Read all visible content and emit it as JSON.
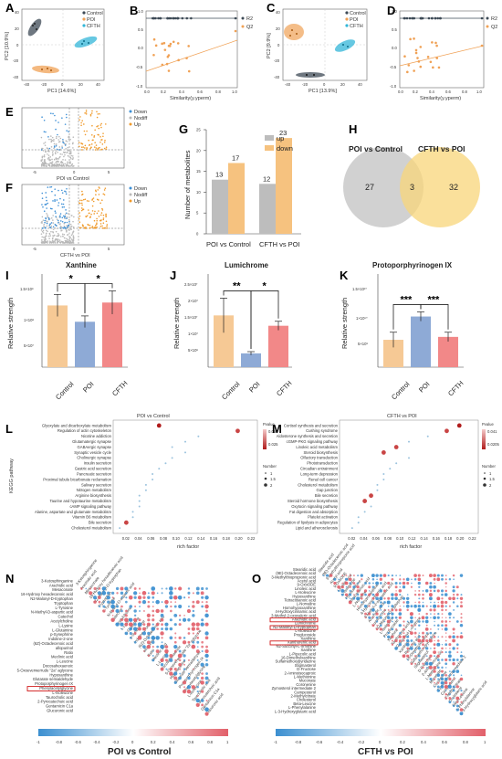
{
  "panel_letters": [
    "A",
    "B",
    "C",
    "D",
    "E",
    "F",
    "G",
    "H",
    "I",
    "J",
    "K",
    "L",
    "M",
    "N",
    "O"
  ],
  "legends": {
    "groups": [
      "Control",
      "POI",
      "CFTH"
    ],
    "r2q2": [
      "R2",
      "Q2"
    ],
    "volcano": [
      "Down",
      "Nodiff",
      "Up"
    ],
    "updown": [
      "up",
      "down"
    ]
  },
  "panel_a": {
    "xlabel": "PC1 [14.6%]",
    "ylabel": "PC2 [10.9%]",
    "xticks": [
      "-40",
      "-20",
      "0",
      "20",
      "40"
    ],
    "yticks": [
      "-40",
      "-20",
      "0",
      "20",
      "40"
    ]
  },
  "panel_b": {
    "xlabel": "Similarity(y.yperm)",
    "xticks": [
      "0.0",
      "0.2",
      "0.4",
      "0.6",
      "0.8",
      "1.0"
    ],
    "yticks": [
      "-1.0",
      "-0.5",
      "0.0",
      "0.5",
      "1.0"
    ]
  },
  "panel_c": {
    "xlabel": "PC1 [13.9%]",
    "ylabel": "PC2 [9.9%]",
    "xticks": [
      "-40",
      "-20",
      "0",
      "20",
      "40"
    ],
    "yticks": [
      "-40",
      "-20",
      "0",
      "20",
      "40"
    ]
  },
  "panel_d": {
    "xlabel": "Similarity(y.yperm)",
    "xticks": [
      "0.0",
      "0.2",
      "0.4",
      "0.6",
      "0.8",
      "1.0"
    ],
    "yticks": [
      "-1.0",
      "-0.5",
      "0.0",
      "0.5",
      "1.0"
    ]
  },
  "panel_e": {
    "xlabel": "POI vs Control",
    "xticks": [
      "-5",
      "0",
      "5"
    ]
  },
  "panel_f": {
    "xlabel": "CFTH vs POI",
    "xticks": [
      "-5",
      "0",
      "5"
    ]
  },
  "panel_g": {
    "ylabel": "Number of metabolites",
    "yticks": [
      "0",
      "5",
      "10",
      "15",
      "20",
      "25"
    ],
    "categories": [
      "POI vs Control",
      "CFTH vs POI"
    ],
    "up": [
      13,
      12
    ],
    "down": [
      17,
      23
    ],
    "labels_up": [
      "13",
      "12"
    ],
    "labels_down": [
      "17",
      "23"
    ]
  },
  "panel_h": {
    "left": "POI vs Control",
    "right": "CFTH vs POI",
    "left_only": "27",
    "overlap": "3",
    "right_only": "32"
  },
  "panel_i": {
    "title": "Xanthine",
    "ylabel": "Relative strength",
    "yticks": [
      "5×10⁷",
      "1×10⁸",
      "1.5×10⁸"
    ],
    "categories": [
      "Control",
      "POI",
      "CFTH"
    ],
    "values": [
      106000000,
      78000000,
      111000000
    ],
    "errors": [
      19000000,
      10000000,
      20000000
    ],
    "sig": [
      "*",
      "*"
    ]
  },
  "panel_j": {
    "title": "Lumichrome",
    "ylabel": "Relative strength",
    "yticks": [
      "5×10⁶",
      "1×10⁷",
      "1.5×10⁷",
      "2×10⁷",
      "2.5×10⁷"
    ],
    "categories": [
      "Control",
      "POI",
      "CFTH"
    ],
    "values": [
      15000000,
      4000000,
      12000000
    ],
    "errors": [
      5000000,
      500000,
      1300000
    ],
    "sig": [
      "**",
      "*"
    ]
  },
  "panel_k": {
    "title": "Protoporphyrinogen IX",
    "ylabel": "Relative strength",
    "yticks": [
      "5×10⁹",
      "1×10¹⁰",
      "1.5×10¹⁰"
    ],
    "categories": [
      "Control",
      "POI",
      "CFTH"
    ],
    "values": [
      4700000000,
      8700000000,
      5200000000
    ],
    "errors": [
      1300000000,
      800000000,
      800000000
    ],
    "sig": [
      "***",
      "***"
    ]
  },
  "panel_l": {
    "title": "POI vs Control",
    "ylabel": "KEGG pathway",
    "xlabel": "rich factor",
    "xticks": [
      "0.02",
      "0.04",
      "0.06",
      "0.08",
      "0.10",
      "0.12",
      "0.14",
      "0.16",
      "0.18",
      "0.20",
      "0.22"
    ],
    "pathways": [
      "Glyoxylate and dicarboxylate metabolism",
      "Regulation of actin cytoskeleton",
      "Nicotine addiction",
      "Glutamatergic synapse",
      "GABAergic synapse",
      "Synaptic vesicle cycle",
      "Cholinergic synapse",
      "Insulin secretion",
      "Gastric acid secretion",
      "Pancreatic secretion",
      "Proximal tubule bicarbonate reclamation",
      "Salivary secretion",
      "Nitrogen metabolism",
      "Arginine biosynthesis",
      "Taurine and hypotaurine metabolism",
      "cAMP signaling pathway",
      "Alanine, aspartate and glutamate metabolism",
      "Vitamin B6 metabolism",
      "Bile secretion",
      "Cholesterol metabolism"
    ],
    "rich_factor": [
      0.08,
      0.2,
      0.14,
      0.12,
      0.1,
      0.12,
      0.1,
      0.09,
      0.08,
      0.07,
      0.07,
      0.06,
      0.06,
      0.05,
      0.05,
      0.05,
      0.04,
      0.04,
      0.03,
      0.02
    ],
    "pvalue_label": "Pvalue",
    "pvalue_ticks": [
      "0.050",
      "0.025"
    ],
    "number_label": "Number",
    "number_ticks": [
      "1",
      "1.5",
      "2"
    ]
  },
  "panel_m": {
    "title": "CFTH vs POI",
    "xlabel": "rich factor",
    "xticks": [
      "0.02",
      "0.04",
      "0.06",
      "0.08",
      "0.10",
      "0.12",
      "0.14",
      "0.16",
      "0.18",
      "0.20",
      "0.22"
    ],
    "pathways": [
      "Cortisol synthesis and secretion",
      "Cushing syndrome",
      "Aldosterone synthesis and secretion",
      "cGMP-PKG signaling pathway",
      "Linoleic acid metabolism",
      "Steroid biosynthesis",
      "Olfactory transduction",
      "Phototransduction",
      "Circadian entrainment",
      "Long-term depression",
      "Renal cell cancer",
      "Cholesterol metabolism",
      "Gap junction",
      "Bile secretion",
      "Steroid hormone biosynthesis",
      "Oxytocin signaling pathway",
      "Fat digestion and absorption",
      "Platelet activation",
      "Regulation of lipolysis in adipocytes",
      "Lipid and atherosclerosis"
    ],
    "rich_factor": [
      0.2,
      0.18,
      0.15,
      0.12,
      0.1,
      0.08,
      0.12,
      0.1,
      0.09,
      0.08,
      0.08,
      0.07,
      0.07,
      0.06,
      0.05,
      0.06,
      0.05,
      0.04,
      0.04,
      0.03
    ],
    "pvalue_label": "Pvalue",
    "pvalue_ticks": [
      "0.041",
      "0.0205"
    ],
    "number_label": "Number",
    "number_ticks": [
      "1",
      "1.5",
      "2"
    ]
  },
  "panel_n": {
    "caption": "POI vs Control",
    "metabolites": [
      "3-Ketosphinganine",
      "Arachidic acid",
      "Mesaconate",
      "16-Hydroxy hexadecanoic acid",
      "N2-Malonyl-D-tryptophan",
      "Tryptophan",
      "L-Tyrosine",
      "N-Methyl-D-aspartic acid",
      "Catechol",
      "Acetylcholine",
      "L-Lysine",
      "L-Glutamine",
      "p-Synephrine",
      "Indoline-2-one",
      "(6Z)-Octadecenoic acid",
      "allopurinol",
      "Ratio",
      "Meclinic acid",
      "L-Leucine",
      "Docosahexaenoic",
      "5-Oxoeverwerrude \"2a\" aglycone",
      "Hypoxanthine",
      "Glutarate semialdehyde",
      "Protoporphyrinogen IX",
      "Phenylacetylglycine",
      "L-Isoleucine",
      "Taurocholic acid",
      "2-Pyrocatechuic acid",
      "Gentamicin C1a",
      "Glucuronic acid"
    ],
    "colorbar": [
      "-1",
      "-0.8",
      "-0.6",
      "-0.4",
      "-0.2",
      "0",
      "0.2",
      "0.4",
      "0.6",
      "0.8",
      "1"
    ]
  },
  "panel_o": {
    "caption": "CFTH vs POI",
    "metabolites": [
      "Stearidic acid",
      "(9E)-Octadecenoic acid",
      "3-Methylthiopropionic acid",
      "Acetyl acid",
      "9-OxoODE",
      "Linoleic acid",
      "L-Isoleucine",
      "Hypoxanthine",
      "Tetracosanoic acid",
      "L-Norvaline",
      "Homohypoxanthine",
      "4-Hydroxycinnamic acid",
      "3-Methyl-2-oxovaleric acid",
      "Arachidic acid",
      "Lumichrome",
      "N2-Malonyl-D-tryptophan",
      "L-Isoleucine",
      "Proglucoside",
      "Xanthine",
      "Xanthurenic acid",
      "N2-Succinyl-L-ornithine",
      "Xanthine",
      "L-Pipecolic acid",
      "16-Dimethylxanthine",
      "Sulfamethoxypyridazine",
      "Stigmasterol",
      "D-Fructose",
      "2-Aminoisocaproic",
      "L-Methionine",
      "Muconate",
      "Coronenine",
      "Zymosterol intermediate 2",
      "Campesterol",
      "2-Methylcitrate",
      "Cholesterol",
      "Beta-Leucine",
      "L-Phenylalanine",
      "L-3-Hydroxyglutaric acid"
    ],
    "colorbar": [
      "-1",
      "-0.8",
      "-0.6",
      "-0.4",
      "-0.2",
      "0",
      "0.2",
      "0.4",
      "0.6",
      "0.8",
      "1"
    ]
  },
  "colors": {
    "control": "#3d4a56",
    "poi": "#f0a155",
    "cfth": "#33b6d8",
    "volcano_down": "#3c8fd6",
    "volcano_nodiff": "#b8b8b8",
    "volcano_up": "#f09a2a",
    "bar_up": "#bdbdbd",
    "bar_down": "#f6c27f",
    "bar_control": "#f6c995",
    "bar_poi": "#8eaad6",
    "bar_cfth": "#f28888",
    "heat_neg": "#3b8fd0",
    "heat_pos": "#e2606a"
  }
}
